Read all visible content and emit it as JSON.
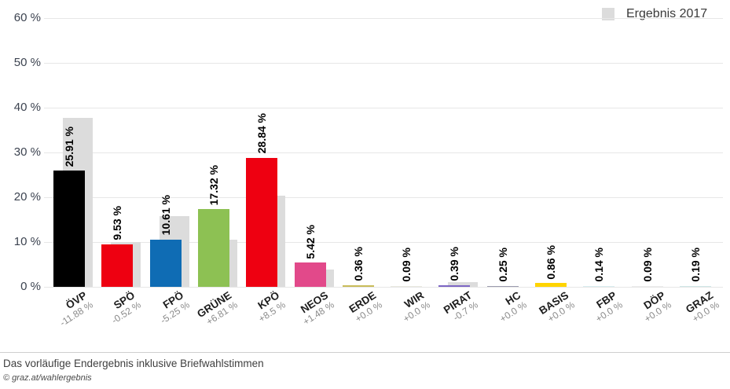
{
  "legend": {
    "label": "Ergebnis 2017",
    "swatch_color": "#dcdcdc"
  },
  "y_axis": {
    "ticks": [
      "60 %",
      "50 %",
      "40 %",
      "30 %",
      "20 %",
      "10 %",
      "0 %"
    ],
    "max": 60
  },
  "chart_data": {
    "type": "bar",
    "title": "",
    "categories": [
      "ÖVP",
      "SPÖ",
      "FPÖ",
      "GRÜNE",
      "KPÖ",
      "NEOS",
      "ERDE",
      "WIR",
      "PIRAT",
      "HC",
      "BASIS",
      "FBP",
      "DÖP",
      "GRAZ"
    ],
    "series": [
      {
        "name": "Vorläufiges Endergebnis",
        "values": [
          25.91,
          9.53,
          10.61,
          17.32,
          28.84,
          5.42,
          0.36,
          0.09,
          0.39,
          0.25,
          0.86,
          0.14,
          0.09,
          0.19
        ]
      },
      {
        "name": "Ergebnis 2017",
        "values": [
          37.79,
          10.05,
          15.86,
          10.51,
          20.34,
          3.94,
          0,
          0,
          1.09,
          0,
          0,
          0,
          0,
          0
        ]
      }
    ],
    "changes": [
      "-11.88 %",
      "-0.52 %",
      "-5.25 %",
      "+6.81 %",
      "+8.5 %",
      "+1.48 %",
      "+0.0 %",
      "+0.0 %",
      "-0.7 %",
      "+0.0 %",
      "+0.0 %",
      "+0.0 %",
      "+0.0 %",
      "+0.0 %"
    ],
    "xlabel": "",
    "ylabel": "",
    "ylim": [
      0,
      60
    ],
    "grid": true,
    "legend_position": "top-right"
  },
  "parties": [
    {
      "name": "ÖVP",
      "value": 25.91,
      "value_label": "25.91 %",
      "change_label": "-11.88 %",
      "prev": 37.79,
      "color": "#000000"
    },
    {
      "name": "SPÖ",
      "value": 9.53,
      "value_label": "9.53 %",
      "change_label": "-0.52 %",
      "prev": 10.05,
      "color": "#ee0011"
    },
    {
      "name": "FPÖ",
      "value": 10.61,
      "value_label": "10.61 %",
      "change_label": "-5.25 %",
      "prev": 15.86,
      "color": "#0f6cb4"
    },
    {
      "name": "GRÜNE",
      "value": 17.32,
      "value_label": "17.32 %",
      "change_label": "+6.81 %",
      "prev": 10.51,
      "color": "#8dc153"
    },
    {
      "name": "KPÖ",
      "value": 28.84,
      "value_label": "28.84 %",
      "change_label": "+8.5 %",
      "prev": 20.34,
      "color": "#ee0011"
    },
    {
      "name": "NEOS",
      "value": 5.42,
      "value_label": "5.42 %",
      "change_label": "+1.48 %",
      "prev": 3.94,
      "color": "#e2498a"
    },
    {
      "name": "ERDE",
      "value": 0.36,
      "value_label": "0.36 %",
      "change_label": "+0.0 %",
      "prev": 0,
      "color": "#c9bc5a"
    },
    {
      "name": "WIR",
      "value": 0.09,
      "value_label": "0.09 %",
      "change_label": "+0.0 %",
      "prev": 0,
      "color": "#e9e9e0"
    },
    {
      "name": "PIRAT",
      "value": 0.39,
      "value_label": "0.39 %",
      "change_label": "-0.7 %",
      "prev": 1.09,
      "color": "#7d66c4"
    },
    {
      "name": "HC",
      "value": 0.25,
      "value_label": "0.25 %",
      "change_label": "+0.0 %",
      "prev": 0,
      "color": "#9b9bae"
    },
    {
      "name": "BASIS",
      "value": 0.86,
      "value_label": "0.86 %",
      "change_label": "+0.0 %",
      "prev": 0,
      "color": "#ffd400"
    },
    {
      "name": "FBP",
      "value": 0.14,
      "value_label": "0.14 %",
      "change_label": "+0.0 %",
      "prev": 0,
      "color": "#d9edf0"
    },
    {
      "name": "DÖP",
      "value": 0.09,
      "value_label": "0.09 %",
      "change_label": "+0.0 %",
      "prev": 0,
      "color": "#ececec"
    },
    {
      "name": "GRAZ",
      "value": 0.19,
      "value_label": "0.19 %",
      "change_label": "+0.0 %",
      "prev": 0,
      "color": "#cfe7e6"
    }
  ],
  "footer": {
    "line1": "Das vorläufige Endergebnis inklusive Briefwahlstimmen",
    "line2": "© graz.at/wahlergebnis"
  }
}
